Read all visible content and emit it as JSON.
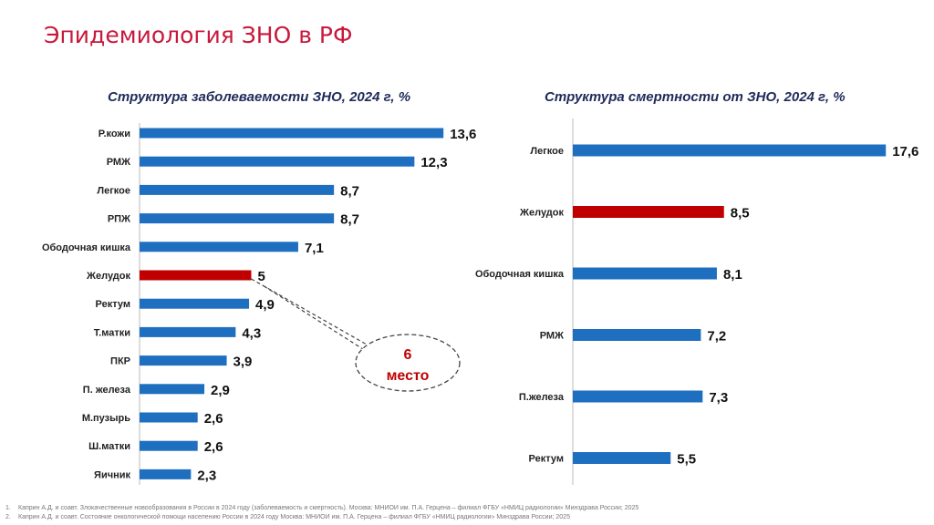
{
  "title": "Эпидемиология ЗНО в РФ",
  "colors": {
    "bar": "#1f6fc0",
    "highlight": "#c00000",
    "title": "#c8193c"
  },
  "chart_data": [
    {
      "type": "bar",
      "orientation": "horizontal",
      "title": "Структура заболеваемости ЗНО, 2024 г, %",
      "categories": [
        "Р.кожи",
        "РМЖ",
        "Легкое",
        "РПЖ",
        "Ободочная кишка",
        "Желудок",
        "Ректум",
        "Т.матки",
        "ПКР",
        "П. железа",
        "М.пузырь",
        "Ш.матки",
        "Яичник"
      ],
      "values": [
        13.6,
        12.3,
        8.7,
        8.7,
        7.1,
        5,
        4.9,
        4.3,
        3.9,
        2.9,
        2.6,
        2.6,
        2.3
      ],
      "labels": [
        "13,6",
        "12,3",
        "8,7",
        "8,7",
        "7,1",
        "5",
        "4,9",
        "4,3",
        "3,9",
        "2,9",
        "2,6",
        "2,6",
        "2,3"
      ],
      "highlight": "Желудок",
      "annotation": {
        "line1": "6",
        "line2": "место"
      }
    },
    {
      "type": "bar",
      "orientation": "horizontal",
      "title": "Структура смертности от ЗНО, 2024 г, %",
      "categories": [
        "Легкое",
        "Желудок",
        "Ободочная кишка",
        "РМЖ",
        "П.железа",
        "Ректум"
      ],
      "values": [
        17.6,
        8.5,
        8.1,
        7.2,
        7.3,
        5.5
      ],
      "labels": [
        "17,6",
        "8,5",
        "8,1",
        "7,2",
        "7,3",
        "5,5"
      ],
      "highlight": "Желудок"
    }
  ],
  "footnotes": [
    {
      "n": "1.",
      "text": "Каприн А.Д. и соавт. Злокачественные новообразования в России в 2024 году (заболеваемость и смертность). Москва: МНИОИ им. П.А. Герцена – филиал ФГБУ «НМИЦ радиологии» Минздрава России; 2025"
    },
    {
      "n": "2.",
      "text": "Каприн А.Д. и соавт. Состояние онкологической помощи населению России в 2024 году Москва: МНИОИ им. П.А. Герцена – филиал ФГБУ «НМИЦ радиологии» Минздрава России; 2025"
    }
  ]
}
